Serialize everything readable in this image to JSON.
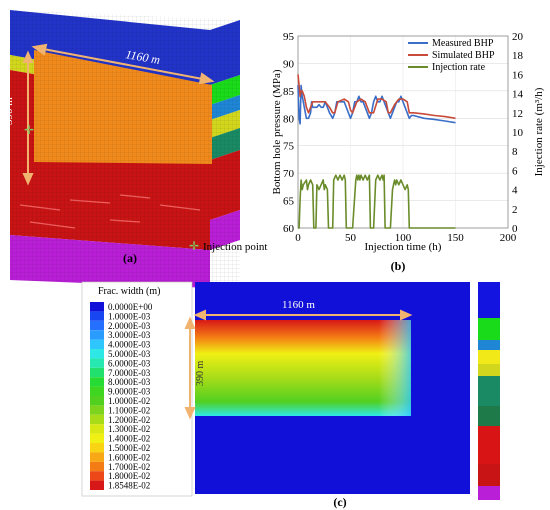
{
  "panel_a": {
    "label": "(a)",
    "length_annotation": "1160 m",
    "height_annotation": "390 m",
    "legend_text": "Injection point",
    "colors": {
      "face": "#f08a1c",
      "side_red": "#c81414",
      "base_purple": "#b81fd6",
      "top_blue": "#2233c8"
    }
  },
  "panel_b": {
    "label": "(b)",
    "legend": [
      "Measured BHP",
      "Simulated BHP",
      "Injection rate"
    ]
  },
  "panel_c": {
    "label": "(c)",
    "legend_title": "Frac. width (m)",
    "length_annotation": "1160 m",
    "height_annotation": "390 m",
    "colorbar_labels": [
      "0.0000E+00",
      "1.0000E-03",
      "2.0000E-03",
      "3.0000E-03",
      "4.0000E-03",
      "5.0000E-03",
      "6.0000E-03",
      "7.0000E-03",
      "8.0000E-03",
      "9.0000E-03",
      "1.0000E-02",
      "1.1000E-02",
      "1.2000E-02",
      "1.3000E-02",
      "1.4000E-02",
      "1.5000E-02",
      "1.6000E-02",
      "1.7000E-02",
      "1.8000E-02",
      "1.8548E-02"
    ],
    "colorbar_colors": [
      "#1010d8",
      "#1846f0",
      "#2670ff",
      "#2b9cff",
      "#2fc6ff",
      "#2ee8e6",
      "#26e8b0",
      "#22e06e",
      "#26dc34",
      "#3ed621",
      "#52d020",
      "#7ed41c",
      "#a8dc18",
      "#d8e814",
      "#f0f014",
      "#f8d414",
      "#f8a814",
      "#f47c14",
      "#ec4818",
      "#d81818"
    ],
    "strip_colors": [
      "#1414e0",
      "#1adb1a",
      "#1f86d6",
      "#f2ea18",
      "#d2d61c",
      "#1a8a64",
      "#1f7a4a",
      "#d81414",
      "#c81414",
      "#b81fd6"
    ]
  },
  "chart_data": {
    "type": "line",
    "x_label": "Injection time (h)",
    "y_label": "Bottom hole pressure (MPa)",
    "y2_label": "Injection rate (m³/h)",
    "xlim": [
      0,
      200
    ],
    "ylim": [
      60,
      95
    ],
    "y2lim": [
      0,
      20
    ],
    "x_ticks": [
      "0",
      "50",
      "100",
      "150",
      "200"
    ],
    "y_ticks": [
      "60",
      "65",
      "70",
      "75",
      "80",
      "85",
      "90",
      "95"
    ],
    "y2_ticks": [
      "0",
      "2",
      "4",
      "6",
      "8",
      "10",
      "12",
      "14",
      "16",
      "18",
      "20"
    ],
    "series": [
      {
        "name": "Measured BHP",
        "axis": "left",
        "color": "#3a6ec8",
        "x": [
          0,
          1,
          2,
          3,
          4,
          5,
          6,
          8,
          10,
          12,
          13,
          14,
          18,
          20,
          22,
          24,
          26,
          28,
          30,
          33,
          35,
          37,
          40,
          44,
          46,
          48,
          50,
          52,
          54,
          56,
          58,
          60,
          62,
          64,
          66,
          68,
          70,
          72,
          74,
          76,
          78,
          80,
          82,
          84,
          86,
          88,
          90,
          92,
          94,
          96,
          98,
          100,
          102,
          104,
          106,
          108,
          110,
          120,
          130,
          140,
          150
        ],
        "y": [
          86,
          80,
          79,
          86,
          84,
          83,
          82,
          80,
          80,
          81,
          83,
          82,
          82,
          82.5,
          82,
          82,
          83,
          82,
          81,
          80,
          81,
          83,
          83,
          83,
          82,
          81,
          80,
          81,
          83,
          83,
          84,
          83,
          83,
          82,
          81,
          80,
          81,
          83,
          84,
          83,
          83,
          84,
          83,
          82,
          81,
          80,
          81,
          82,
          83,
          83,
          84,
          83,
          82,
          81,
          80,
          80.5,
          80.5,
          80,
          79.8,
          79.5,
          79.2
        ]
      },
      {
        "name": "Simulated BHP",
        "axis": "left",
        "color": "#c84a3a",
        "x": [
          0,
          1,
          2,
          3,
          4,
          6,
          8,
          10,
          12,
          14,
          18,
          22,
          26,
          30,
          33,
          35,
          38,
          44,
          48,
          50,
          52,
          56,
          60,
          64,
          68,
          70,
          72,
          76,
          80,
          84,
          86,
          88,
          92,
          96,
          100,
          104,
          106,
          110,
          120,
          130,
          140,
          150
        ],
        "y": [
          88,
          86,
          84,
          85,
          85,
          84,
          82,
          81,
          82,
          83,
          83,
          83,
          83,
          82,
          81,
          81,
          83,
          83.5,
          83,
          81.5,
          81,
          83,
          83.5,
          83,
          81,
          81,
          81,
          83.5,
          83.5,
          83,
          81,
          81,
          82.5,
          83.5,
          83.5,
          83,
          81,
          81,
          80.8,
          80.5,
          80.3,
          80
        ]
      },
      {
        "name": "Injection rate",
        "axis": "right",
        "color": "#6a8c2a",
        "x": [
          0,
          1,
          2,
          3,
          4,
          5,
          8,
          9,
          10,
          12,
          14,
          15,
          16,
          17,
          18,
          20,
          22,
          24,
          25,
          26,
          28,
          29,
          30,
          31,
          32,
          33,
          34,
          36,
          38,
          40,
          42,
          44,
          45,
          46,
          47,
          50,
          52,
          55,
          56,
          57,
          58,
          59,
          60,
          62,
          64,
          66,
          68,
          69,
          70,
          71,
          72,
          74,
          76,
          78,
          80,
          81,
          82,
          83,
          84,
          86,
          88,
          90,
          91,
          92,
          93,
          94,
          96,
          98,
          100,
          102,
          104,
          105,
          106,
          107,
          108,
          110,
          150
        ],
        "y": [
          0,
          0,
          3,
          5,
          4,
          4.5,
          5,
          4,
          4.5,
          5,
          4.5,
          0,
          0,
          0,
          4.5,
          4,
          4.5,
          5,
          4,
          4.5,
          4,
          0,
          0,
          0,
          0,
          0,
          5,
          5.5,
          5,
          5.5,
          5,
          5.5,
          5,
          0,
          0,
          0,
          0,
          5,
          5.5,
          5,
          5.5,
          5,
          5.5,
          5,
          5.5,
          5,
          5.5,
          0,
          0,
          0,
          0,
          5,
          5.5,
          5,
          5.5,
          5,
          5.5,
          0,
          0,
          0,
          0,
          4,
          4.5,
          5,
          4.5,
          5,
          4.5,
          5,
          4.5,
          4,
          4.5,
          4,
          0,
          0,
          0,
          0,
          0
        ]
      }
    ]
  }
}
